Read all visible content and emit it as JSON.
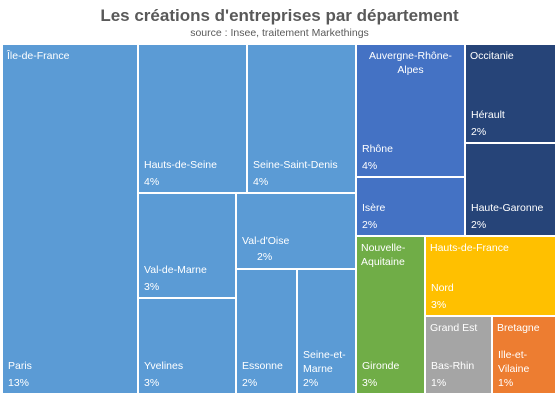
{
  "chart_data": {
    "type": "treemap",
    "title": "Les créations d'entreprises par département",
    "subtitle": "source : Insee, traitement Markethings",
    "colors": {
      "Île-de-France": "#5b9bd5",
      "Auvergne-Rhône-Alpes": "#4472c4",
      "Occitanie": "#264478",
      "Nouvelle-Aquitaine": "#70ad47",
      "Hauts-de-France": "#ffc000",
      "Grand Est": "#a5a5a5",
      "Bretagne": "#ed7d31"
    },
    "groups": [
      {
        "name": "Île-de-France",
        "items": [
          {
            "name": "Paris",
            "value": "13%"
          },
          {
            "name": "Hauts-de-Seine",
            "value": "4%"
          },
          {
            "name": "Seine-Saint-Denis",
            "value": "4%"
          },
          {
            "name": "Val-de-Marne",
            "value": "3%"
          },
          {
            "name": "Val-d'Oise",
            "value": "2%"
          },
          {
            "name": "Yvelines",
            "value": "3%"
          },
          {
            "name": "Essonne",
            "value": "2%"
          },
          {
            "name": "Seine-et-Marne",
            "value": "2%"
          }
        ]
      },
      {
        "name": "Auvergne-Rhône-Alpes",
        "items": [
          {
            "name": "Rhône",
            "value": "4%"
          },
          {
            "name": "Isère",
            "value": "2%"
          }
        ]
      },
      {
        "name": "Occitanie",
        "items": [
          {
            "name": "Hérault",
            "value": "2%"
          },
          {
            "name": "Haute-Garonne",
            "value": "2%"
          }
        ]
      },
      {
        "name": "Nouvelle-Aquitaine",
        "items": [
          {
            "name": "Gironde",
            "value": "3%"
          }
        ]
      },
      {
        "name": "Hauts-de-France",
        "items": [
          {
            "name": "Nord",
            "value": "3%"
          }
        ]
      },
      {
        "name": "Grand Est",
        "items": [
          {
            "name": "Bas-Rhin",
            "value": "1%"
          }
        ]
      },
      {
        "name": "Bretagne",
        "items": [
          {
            "name": "Ille-et-Vilaine",
            "value": "1%"
          }
        ]
      }
    ]
  }
}
